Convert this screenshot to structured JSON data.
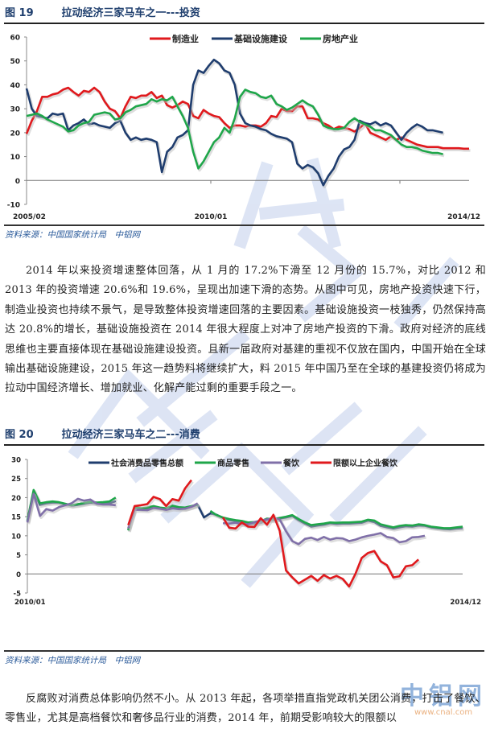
{
  "figure19": {
    "number": "图 19",
    "title": "拉动经济三家马车之一---投资",
    "source": "资料来源：中国国家统计局　中铝网"
  },
  "figure20": {
    "number": "图 20",
    "title": "拉动经济三家马车之二---消费",
    "source": "资料来源：中国国家统计局　中铝网"
  },
  "paragraph1": "2014 年以来投资增速整体回落，从 1 月的 17.2%下滑至 12 月份的 15.7%，对比 2012 和 2013 年的投资增速 20.6%和 19.6%，呈现出加速下滑的态势。从图中可见，房地产投资快速下行，制造业投资也持续不景气，是导致整体投资增速回落的主要因素。基础设施投资一枝独秀，仍然保持高达 20.8%的增长，基础设施投资在 2014 年很大程度上对冲了房地产投资的下滑。政府对经济的底线思维也主要直接体现在基础设施建设投资。且新一届政府对基建的重视不仅放在国内，中国开始在全球输出基础设施建设，2015 年这一趋势料将继续扩大，料 2015 年中国乃至在全球的基建投资仍将成为拉动中国经济增长、增加就业、化解产能过剩的重要手段之一。",
  "paragraph2": "反腐败对消费总体影响仍然不小。从 2013 年起，各项举措直指党政机关团公消费，打击了餐饮、零售业，尤其是高档餐饮和奢侈品行业的消费，2014 年，前期受影响较大的限额以",
  "watermark_logo": {
    "text": "中铝网",
    "url_text": "www.cnal.com"
  },
  "chart_data": [
    {
      "type": "line",
      "title": "拉动经济三家马车之一---投资",
      "xlabel": "",
      "ylabel": "",
      "ylim": [
        -10,
        60
      ],
      "yticks": [
        -10,
        0,
        10,
        20,
        30,
        40,
        50,
        60
      ],
      "xtick_labels": [
        "2005/02",
        "2010/01",
        "2014/12"
      ],
      "legend_position": "top",
      "grid": false,
      "x_range": [
        "2005/02",
        "2014/12"
      ],
      "series": [
        {
          "name": "制造业",
          "color": "#e0191d",
          "values": [
            19.5,
            25,
            29,
            35,
            35,
            36,
            36.5,
            38,
            38.8,
            37,
            35.5,
            37.5,
            37,
            38.8,
            37,
            33,
            30,
            29,
            26,
            31,
            35,
            34.5,
            35.5,
            35.5,
            37,
            34.5,
            35.5,
            31.5,
            30.5,
            31.5,
            33,
            32,
            27,
            26,
            29.5,
            28,
            27,
            26.5,
            24,
            22,
            23,
            23,
            22.5,
            23,
            23,
            22.5,
            24,
            27,
            26.5,
            30,
            29,
            29,
            31,
            31,
            26,
            26,
            25.5,
            24,
            23,
            21.5,
            22.5,
            22,
            21.5,
            20.5,
            22,
            24,
            20,
            19,
            18,
            17,
            18.5,
            17,
            18,
            17,
            16,
            15,
            14.5,
            14,
            14,
            14,
            13.5,
            13.5,
            13.5,
            13.5,
            13.3,
            13.3
          ]
        },
        {
          "name": "基础设施建设",
          "color": "#1f3d6e",
          "values": [
            38.5,
            30,
            27,
            26.5,
            26,
            28,
            27.5,
            28,
            21,
            23,
            24,
            25.5,
            23.5,
            24,
            23,
            22.5,
            22,
            24,
            25,
            20,
            17,
            18,
            17,
            17.5,
            17,
            16,
            3.5,
            12,
            14,
            18,
            19,
            21,
            40,
            46,
            45,
            48,
            50.5,
            49,
            46,
            45,
            40,
            28,
            24,
            23,
            22.5,
            21.5,
            21,
            19.5,
            18.5,
            18,
            17.5,
            16,
            7,
            5,
            6.5,
            5.5,
            3,
            -2,
            2,
            5,
            10,
            13,
            14,
            17,
            25,
            24,
            23.5,
            24.5,
            23,
            24,
            23,
            20,
            17,
            20,
            22,
            23.5,
            22.5,
            21,
            21,
            20.5,
            20
          ]
        },
        {
          "name": "房地产业",
          "color": "#1fa64a",
          "values": [
            27,
            27.5,
            28,
            27,
            25.5,
            24.5,
            23.5,
            22.5,
            20.5,
            21,
            23,
            24,
            24.5,
            27.5,
            28,
            28.5,
            28,
            25.5,
            26,
            28.5,
            29.5,
            31,
            31.5,
            32,
            34,
            33,
            34,
            33.5,
            35,
            31,
            27,
            22,
            12,
            5,
            8,
            12,
            16,
            18,
            22,
            20,
            26,
            35,
            38,
            37,
            36.5,
            35,
            34.5,
            35.5,
            32,
            31,
            29.5,
            30.5,
            32,
            33.5,
            32,
            31,
            27.5,
            23,
            22,
            21.5,
            21.5,
            22,
            24.5,
            26,
            24.5,
            23.5,
            22.5,
            21,
            21,
            20,
            19,
            17,
            15,
            14,
            14,
            13.5,
            12.5,
            12,
            11.5,
            11.5,
            11
          ]
        }
      ]
    },
    {
      "type": "line",
      "title": "拉动经济三家马车之二---消费",
      "xlabel": "",
      "ylabel": "",
      "ylim": [
        -5,
        30
      ],
      "yticks": [
        -5,
        0,
        5,
        10,
        15,
        20,
        25,
        30
      ],
      "xtick_labels": [
        "2010/01",
        "2014/12"
      ],
      "legend_position": "top",
      "grid": false,
      "x_range": [
        "2010/01",
        "2014/12"
      ],
      "series": [
        {
          "name": "社会消费品零售总额",
          "color": "#1f3d6e",
          "values": [
            13.8,
            21.5,
            18.1,
            18.5,
            18.7,
            18.7,
            18.3,
            17.9,
            18.1,
            18.4,
            18.7,
            18.5,
            18.5,
            18.5,
            19.1,
            null,
            11.6,
            17.4,
            17.1,
            17.2,
            17.6,
            17.3,
            17,
            17.7,
            17.3,
            17.2,
            17.6,
            18.1,
            14.8,
            15.9,
            15.5,
            14.7,
            14.1,
            13.9,
            13.7,
            13.2,
            13.2,
            13.4,
            14.2,
            14.1,
            14.5,
            14.8,
            15.2,
            14.1,
            13.2,
            12.4,
            12.7,
            12.9,
            13.3,
            13.1,
            13.2,
            13.2,
            13.3,
            13.4,
            14.0,
            13.6,
            12.6,
            12.2,
            11.9,
            12.2,
            12.5,
            12.4,
            12.7,
            12.6,
            12.2,
            12.0,
            11.8,
            11.7,
            11.9,
            12.0
          ]
        },
        {
          "name": "商品零售",
          "color": "#1fa64a",
          "values": [
            14,
            22,
            18.5,
            18.8,
            19,
            18.8,
            18.4,
            18,
            18.3,
            18.6,
            18.9,
            18.7,
            18.8,
            19,
            20,
            null,
            11.4,
            17.5,
            17.2,
            17.4,
            17.8,
            17.4,
            17.2,
            17.9,
            17.5,
            17.4,
            17.8,
            18.2,
            null,
            16.5,
            15.4,
            14.8,
            14.4,
            14.1,
            13.9,
            13.5,
            13.6,
            13.8,
            14.5,
            14.4,
            14.7,
            15,
            15.4,
            14.4,
            13.5,
            12.8,
            13,
            13.2,
            13.5,
            13.4,
            13.5,
            13.5,
            13.6,
            13.7,
            14.2,
            14,
            13,
            12.6,
            12.2,
            12.6,
            12.8,
            12.7,
            13,
            12.8,
            12.4,
            12.2,
            12,
            12,
            12.2,
            12.4
          ]
        },
        {
          "name": "餐饮",
          "color": "#8070a8",
          "values": [
            13.5,
            21,
            15.2,
            17,
            16.6,
            17.5,
            18,
            18.5,
            19.7,
            19.2,
            19.5,
            18.4,
            18.2,
            18.2,
            18,
            null,
            12,
            16.8,
            16.8,
            16.7,
            17.3,
            17.1,
            16.8,
            17.2,
            17,
            17.1,
            17.6,
            18.5,
            null,
            null,
            null,
            13.3,
            13.2,
            13.4,
            13.1,
            13,
            13.6,
            14,
            14.3,
            14.7,
            14.3,
            11.2,
            8.6,
            7.8,
            9.2,
            9.5,
            8.9,
            9.7,
            9,
            9.4,
            9.3,
            8.6,
            9,
            9.6,
            10,
            10.3,
            10.7,
            9.7,
            9.4,
            8.3,
            8.6,
            9.6,
            9.7,
            10
          ]
        },
        {
          "name": "限额以上企业餐饮",
          "color": "#e0191d",
          "values": [
            null,
            null,
            null,
            null,
            null,
            null,
            null,
            null,
            null,
            null,
            null,
            null,
            null,
            null,
            24.4,
            null,
            12.8,
            17.8,
            18,
            18.3,
            20.2,
            19.6,
            17.8,
            19.6,
            19.2,
            22.4,
            24.6,
            null,
            null,
            null,
            null,
            14.8,
            12.1,
            11.9,
            13.5,
            12.4,
            12.3,
            14.6,
            12.9,
            15.5,
            11.3,
            0.9,
            -0.9,
            -2.5,
            -1.5,
            -0.5,
            -1.8,
            -0.3,
            -1.2,
            -0.5,
            -1.3,
            -3.3,
            0,
            4.2,
            5.5,
            6,
            3.3,
            2.3,
            -0.9,
            -0.6,
            2,
            2.3,
            3.8
          ]
        }
      ]
    }
  ]
}
